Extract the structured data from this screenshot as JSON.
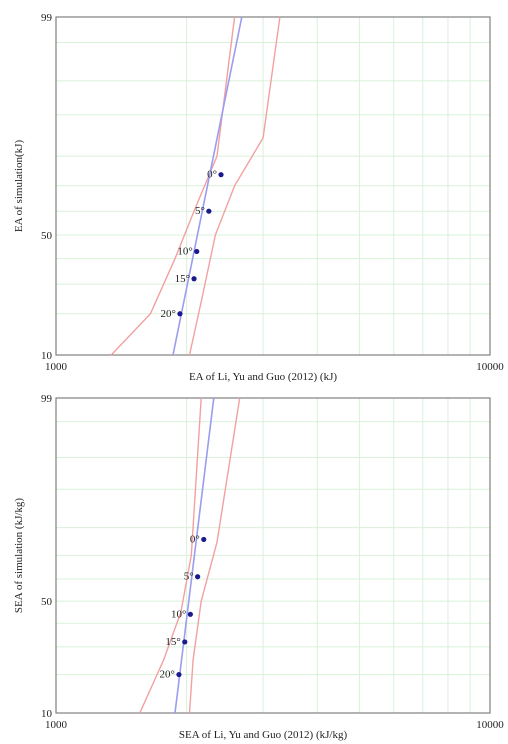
{
  "chart_data": [
    {
      "type": "scatter",
      "title": "",
      "xlabel": "EA of Li, Yu and Guo (2012) (kJ)",
      "ylabel": "EA of simulation(kJ)",
      "x_scale": "log",
      "y_scale": "normal-probability",
      "xlim": [
        1000,
        10000
      ],
      "ylim": [
        10,
        99
      ],
      "x_tick_labels": [
        "1000",
        "10000"
      ],
      "y_tick_labels": [
        "10",
        "50",
        "99"
      ],
      "grid": true,
      "points": [
        {
          "label": "0°",
          "x": 2400,
          "y": 74
        },
        {
          "label": "5°",
          "x": 2250,
          "y": 60
        },
        {
          "label": "10°",
          "x": 2110,
          "y": 43
        },
        {
          "label": "15°",
          "x": 2080,
          "y": 32
        },
        {
          "label": "20°",
          "x": 1930,
          "y": 20
        }
      ],
      "fit_line": [
        {
          "x": 1860,
          "y": 10
        },
        {
          "x": 2680,
          "y": 99
        }
      ],
      "confidence_bounds": {
        "lower": [
          {
            "x": 1340,
            "y": 10
          },
          {
            "x": 1650,
            "y": 20
          },
          {
            "x": 1880,
            "y": 40
          },
          {
            "x": 2080,
            "y": 60
          },
          {
            "x": 2350,
            "y": 80
          },
          {
            "x": 2580,
            "y": 99
          }
        ],
        "upper": [
          {
            "x": 2030,
            "y": 10
          },
          {
            "x": 2170,
            "y": 25
          },
          {
            "x": 2330,
            "y": 50
          },
          {
            "x": 2580,
            "y": 70
          },
          {
            "x": 3000,
            "y": 85
          },
          {
            "x": 3280,
            "y": 99
          }
        ]
      },
      "series_colors": {
        "fit": "#9c9cf0",
        "bounds": "#f2a0a0",
        "points": "#1a1a8c",
        "grid": "#d9f0d9",
        "frame": "#808080"
      }
    },
    {
      "type": "scatter",
      "title": "",
      "xlabel": "SEA of Li, Yu and Guo (2012) (kJ/kg)",
      "ylabel": "SEA of simulation (kJ/kg)",
      "x_scale": "log",
      "y_scale": "normal-probability",
      "xlim": [
        1000,
        10000
      ],
      "ylim": [
        10,
        99
      ],
      "x_tick_labels": [
        "1000",
        "10000"
      ],
      "y_tick_labels": [
        "10",
        "50",
        "99"
      ],
      "grid": true,
      "points": [
        {
          "label": "0°",
          "x": 2190,
          "y": 76
        },
        {
          "label": "5°",
          "x": 2120,
          "y": 61
        },
        {
          "label": "10°",
          "x": 2040,
          "y": 44
        },
        {
          "label": "15°",
          "x": 1980,
          "y": 32
        },
        {
          "label": "20°",
          "x": 1920,
          "y": 20
        }
      ],
      "fit_line": [
        {
          "x": 1880,
          "y": 10
        },
        {
          "x": 2310,
          "y": 99
        }
      ],
      "confidence_bounds": {
        "lower": [
          {
            "x": 1560,
            "y": 10
          },
          {
            "x": 1770,
            "y": 25
          },
          {
            "x": 1940,
            "y": 45
          },
          {
            "x": 2050,
            "y": 70
          },
          {
            "x": 2160,
            "y": 99
          }
        ],
        "upper": [
          {
            "x": 2030,
            "y": 10
          },
          {
            "x": 2070,
            "y": 25
          },
          {
            "x": 2160,
            "y": 50
          },
          {
            "x": 2350,
            "y": 75
          },
          {
            "x": 2650,
            "y": 99
          }
        ]
      },
      "series_colors": {
        "fit": "#9c9cf0",
        "bounds": "#f2a0a0",
        "points": "#1a1a8c",
        "grid": "#d9f0d9",
        "frame": "#808080"
      }
    }
  ]
}
